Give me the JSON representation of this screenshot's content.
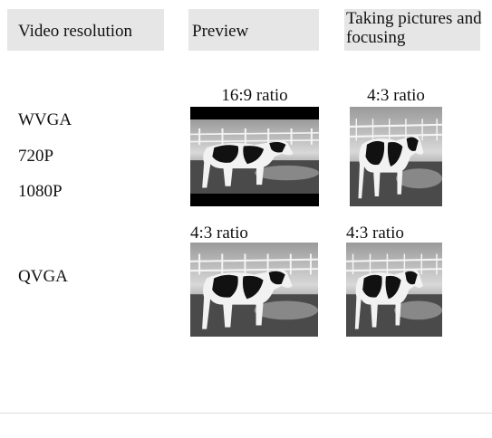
{
  "table": {
    "header": [
      "Video resolution",
      "Preview",
      "Taking pictures and focusing"
    ],
    "rows": [
      {
        "resolutions": [
          "WVGA",
          "720P",
          "1080P"
        ],
        "preview": "16:9 ratio",
        "capture": "4:3 ratio"
      },
      {
        "resolutions": [
          "QVGA"
        ],
        "preview": "4:3 ratio",
        "capture": "4:3 ratio"
      }
    ]
  }
}
